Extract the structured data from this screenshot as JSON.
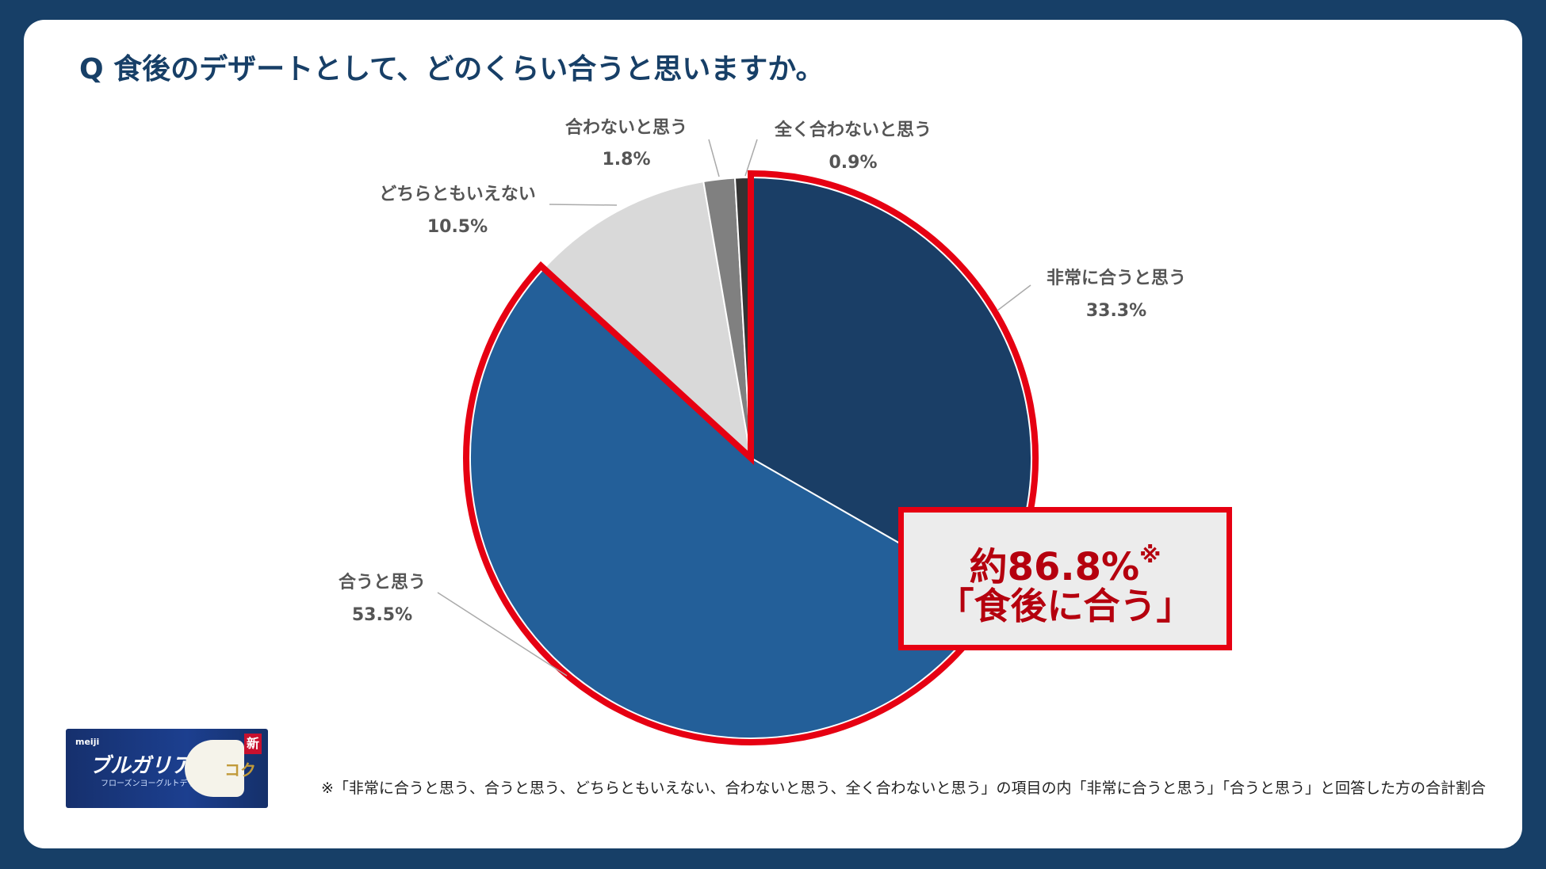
{
  "title": "Q 食後のデザートとして、どのくらい合うと思いますか。",
  "colors": {
    "background": "#173f67",
    "highlight": "#e60012",
    "highlight_text": "#b5000e"
  },
  "chart_data": {
    "type": "pie",
    "slices": [
      {
        "label": "非常に合うと思う",
        "value": 33.3,
        "value_label": "33.3%",
        "color": "#1a3e66"
      },
      {
        "label": "合うと思う",
        "value": 53.5,
        "value_label": "53.5%",
        "color": "#235f99"
      },
      {
        "label": "どちらともいえない",
        "value": 10.5,
        "value_label": "10.5%",
        "color": "#d9d9d9"
      },
      {
        "label": "合わないと思う",
        "value": 1.8,
        "value_label": "1.8%",
        "color": "#808080"
      },
      {
        "label": "全く合わないと思う",
        "value": 0.9,
        "value_label": "0.9%",
        "color": "#333333"
      }
    ],
    "highlighted": [
      "非常に合うと思う",
      "合うと思う"
    ]
  },
  "callout": {
    "line1": "約86.8%",
    "mark": "※",
    "line2": "「食後に合う」"
  },
  "footnote": "※「非常に合うと思う、合うと思う、どちらともいえない、合わないと思う、全く合わないと思う」の項目の内「非常に合うと思う」「合うと思う」と回答した方の合計割合",
  "product": {
    "brand": "meiji",
    "name": "ブルガリア",
    "sub": "フローズンヨーグルトデザート",
    "badge": "新",
    "copy": "コク"
  }
}
